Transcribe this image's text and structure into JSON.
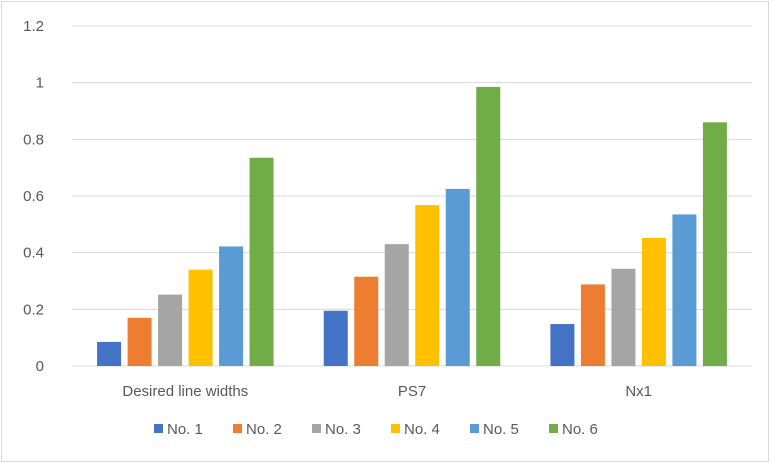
{
  "chart_data": {
    "type": "bar",
    "categories": [
      "Desired line widths",
      "PS7",
      "Nx1"
    ],
    "series": [
      {
        "name": "No. 1",
        "color": "#4472C4",
        "values": [
          0.085,
          0.195,
          0.148
        ]
      },
      {
        "name": "No. 2",
        "color": "#ED7D31",
        "values": [
          0.17,
          0.315,
          0.288
        ]
      },
      {
        "name": "No. 3",
        "color": "#A5A5A5",
        "values": [
          0.252,
          0.43,
          0.343
        ]
      },
      {
        "name": "No. 4",
        "color": "#FFC000",
        "values": [
          0.34,
          0.568,
          0.452
        ]
      },
      {
        "name": "No. 5",
        "color": "#5B9BD5",
        "values": [
          0.422,
          0.625,
          0.535
        ]
      },
      {
        "name": "No. 6",
        "color": "#70AD47",
        "values": [
          0.735,
          0.985,
          0.86
        ]
      }
    ],
    "ylim": [
      0,
      1.2
    ],
    "yticks": [
      "0",
      "0.2",
      "0.4",
      "0.6",
      "0.8",
      "1",
      "1.2"
    ],
    "grid": true,
    "legend_position": "bottom"
  }
}
